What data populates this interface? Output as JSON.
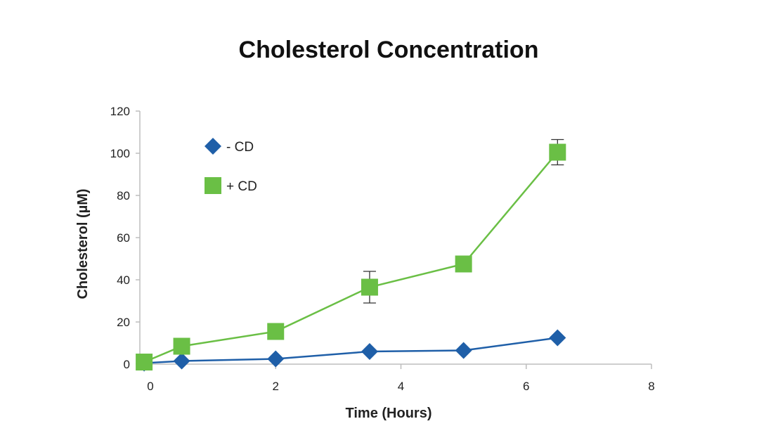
{
  "chart_data": {
    "type": "line",
    "title": "Cholesterol Concentration",
    "xlabel": "Time (Hours)",
    "ylabel": "Cholesterol (µM)",
    "xlim": [
      0,
      8
    ],
    "ylim": [
      0,
      120
    ],
    "xticks": [
      "0",
      "2",
      "4",
      "6",
      "8"
    ],
    "yticks": [
      "0",
      "20",
      "40",
      "60",
      "80",
      "100",
      "120"
    ],
    "grid": false,
    "legend_position": "top-left",
    "series": [
      {
        "name": "- CD",
        "color": "#1f5fa8",
        "marker": "diamond",
        "points": [
          {
            "x": -0.1,
            "y": 0.5
          },
          {
            "x": 0.5,
            "y": 1.5
          },
          {
            "x": 2,
            "y": 2.5
          },
          {
            "x": 3.5,
            "y": 6
          },
          {
            "x": 5,
            "y": 6.5
          },
          {
            "x": 6.5,
            "y": 12.5
          }
        ]
      },
      {
        "name": "+ CD",
        "color": "#6abf45",
        "marker": "square",
        "points": [
          {
            "x": -0.1,
            "y": 1
          },
          {
            "x": 0.5,
            "y": 8.5
          },
          {
            "x": 2,
            "y": 15.5
          },
          {
            "x": 3.5,
            "y": 36.5,
            "error": 7.5
          },
          {
            "x": 5,
            "y": 47.5
          },
          {
            "x": 6.5,
            "y": 100.5,
            "error": 6
          }
        ]
      }
    ]
  }
}
